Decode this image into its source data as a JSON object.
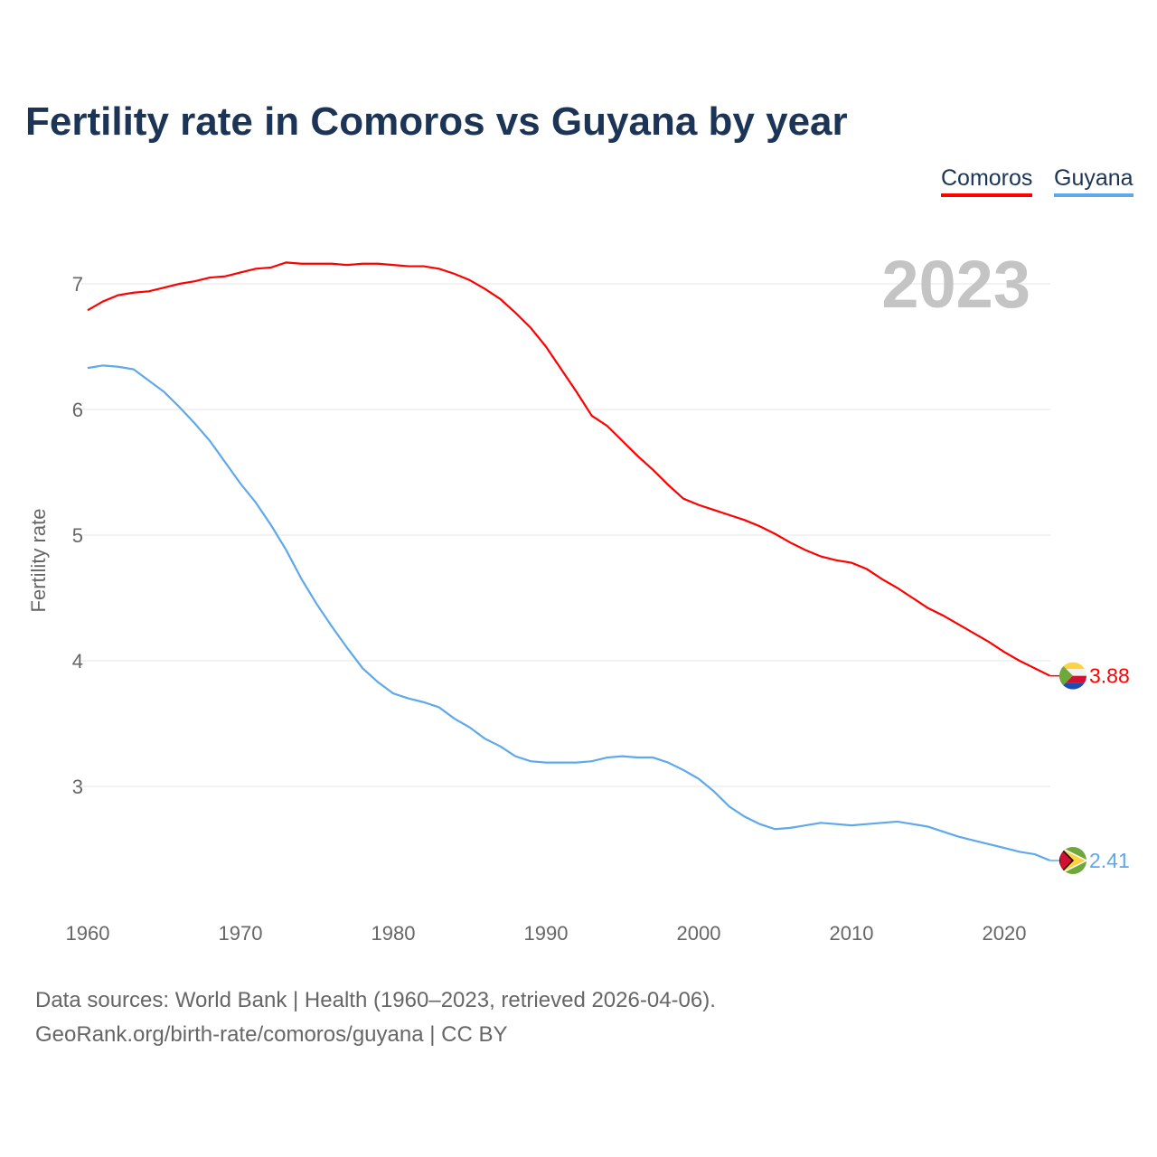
{
  "chart_data": {
    "type": "line",
    "title": "Fertility rate in Comoros vs Guyana by year",
    "ylabel": "Fertility rate",
    "xlabel": "",
    "year_label": "2023",
    "xlim": [
      1960,
      2023
    ],
    "ylim": [
      2.1,
      7.3
    ],
    "xticks": [
      "1960",
      "1970",
      "1980",
      "1990",
      "2000",
      "2010",
      "2020"
    ],
    "yticks": [
      "3",
      "4",
      "5",
      "6",
      "7"
    ],
    "grid": true,
    "legend_position": "top-right",
    "x_start": 1960,
    "series": [
      {
        "name": "Comoros",
        "color": "#ff0000",
        "end_label": "3.88",
        "values": [
          6.79,
          6.86,
          6.91,
          6.93,
          6.94,
          6.97,
          7.0,
          7.02,
          7.05,
          7.06,
          7.09,
          7.12,
          7.13,
          7.17,
          7.16,
          7.16,
          7.16,
          7.15,
          7.16,
          7.16,
          7.15,
          7.14,
          7.14,
          7.12,
          7.08,
          7.03,
          6.96,
          6.88,
          6.77,
          6.65,
          6.5,
          6.32,
          6.14,
          5.95,
          5.87,
          5.75,
          5.63,
          5.52,
          5.4,
          5.29,
          5.24,
          5.2,
          5.16,
          5.12,
          5.07,
          5.01,
          4.94,
          4.88,
          4.83,
          4.8,
          4.78,
          4.73,
          4.65,
          4.58,
          4.5,
          4.42,
          4.36,
          4.29,
          4.22,
          4.15,
          4.07,
          4.0,
          3.94,
          3.88
        ]
      },
      {
        "name": "Guyana",
        "color": "#5ea8ec",
        "end_label": "2.41",
        "values": [
          6.33,
          6.35,
          6.34,
          6.32,
          6.23,
          6.14,
          6.02,
          5.89,
          5.75,
          5.58,
          5.41,
          5.26,
          5.08,
          4.88,
          4.65,
          4.45,
          4.27,
          4.1,
          3.94,
          3.83,
          3.74,
          3.7,
          3.67,
          3.63,
          3.54,
          3.47,
          3.38,
          3.32,
          3.24,
          3.2,
          3.19,
          3.19,
          3.19,
          3.2,
          3.23,
          3.24,
          3.23,
          3.23,
          3.19,
          3.13,
          3.06,
          2.96,
          2.84,
          2.76,
          2.7,
          2.66,
          2.67,
          2.69,
          2.71,
          2.7,
          2.69,
          2.7,
          2.71,
          2.72,
          2.7,
          2.68,
          2.64,
          2.6,
          2.57,
          2.54,
          2.51,
          2.48,
          2.46,
          2.41
        ]
      }
    ]
  },
  "source": {
    "line1": "Data sources: World Bank | Health (1960–2023, retrieved 2026-04-06).",
    "line2": "GeoRank.org/birth-rate/comoros/guyana | CC BY"
  }
}
